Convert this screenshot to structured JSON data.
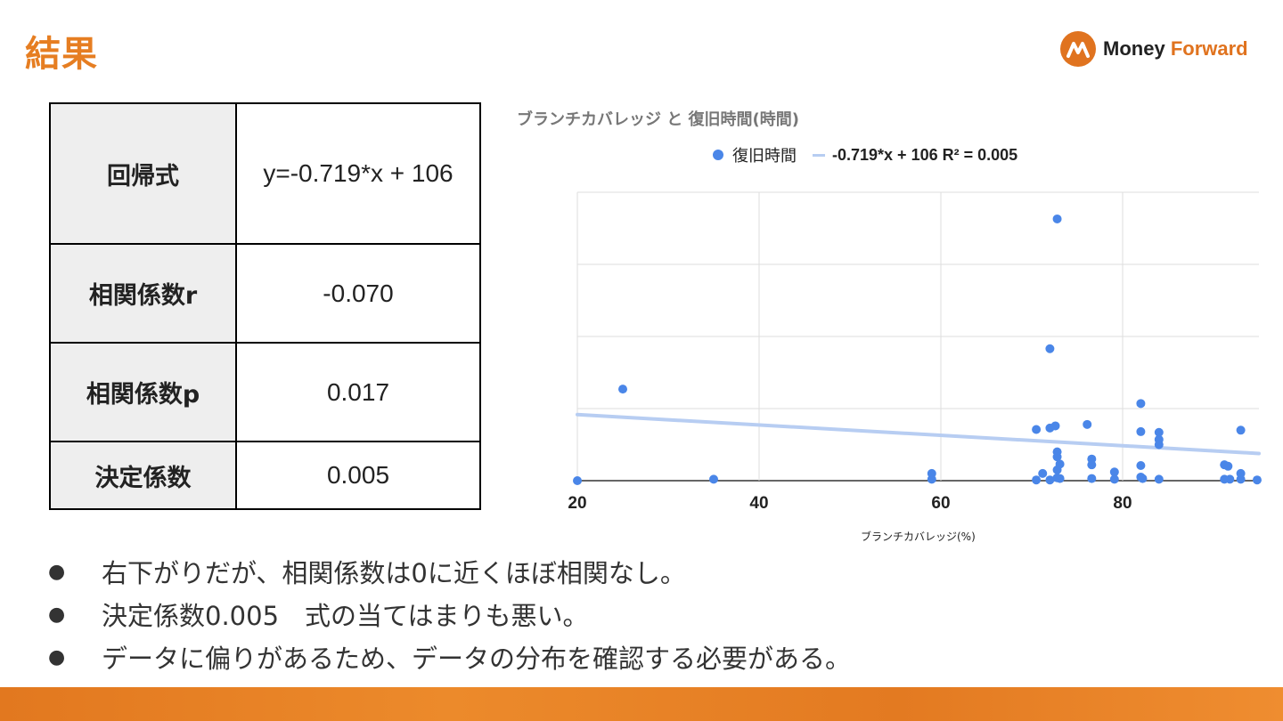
{
  "page": {
    "title": "結果"
  },
  "logo": {
    "word1": "Money",
    "word2": "Forward",
    "color": "#e0731f"
  },
  "table": {
    "rows": [
      {
        "key": "回帰式",
        "value": "y=-0.719*x + 106"
      },
      {
        "key": "相関係数r",
        "value": "-0.070"
      },
      {
        "key": "相関係数p",
        "value": "0.017"
      },
      {
        "key": "決定係数",
        "value": "0.005"
      }
    ]
  },
  "chart_data": {
    "type": "scatter",
    "title": "ブランチカバレッジ と 復旧時間(時間)",
    "xlabel": "ブランチカバレッジ(%)",
    "ylabel": "",
    "xlim": [
      20,
      95
    ],
    "ylim": [
      0,
      400
    ],
    "x_ticks": [
      "20",
      "40",
      "60",
      "80"
    ],
    "grid": true,
    "legend": "top",
    "series": [
      {
        "name": "復旧時間",
        "color": "#4a86e8",
        "points": [
          [
            20,
            0
          ],
          [
            25,
            127
          ],
          [
            35,
            2
          ],
          [
            59,
            10
          ],
          [
            59,
            2
          ],
          [
            70.5,
            71
          ],
          [
            70.5,
            1
          ],
          [
            71.2,
            10
          ],
          [
            72,
            73
          ],
          [
            72,
            183
          ],
          [
            72,
            1
          ],
          [
            72.6,
            76
          ],
          [
            72.8,
            363
          ],
          [
            72.8,
            40
          ],
          [
            72.8,
            33
          ],
          [
            72.8,
            15
          ],
          [
            72.8,
            4
          ],
          [
            73.1,
            23
          ],
          [
            73.1,
            3
          ],
          [
            76.1,
            78
          ],
          [
            76.6,
            30
          ],
          [
            76.6,
            22
          ],
          [
            76.6,
            3
          ],
          [
            79.1,
            12
          ],
          [
            79.1,
            2
          ],
          [
            82,
            107
          ],
          [
            82,
            68
          ],
          [
            82,
            21
          ],
          [
            82,
            5
          ],
          [
            82.2,
            3
          ],
          [
            84,
            67
          ],
          [
            84,
            57
          ],
          [
            84,
            50
          ],
          [
            84,
            2
          ],
          [
            91.2,
            22
          ],
          [
            91.2,
            2
          ],
          [
            91.6,
            20
          ],
          [
            91.8,
            2
          ],
          [
            93,
            70
          ],
          [
            93,
            10
          ],
          [
            93,
            2
          ],
          [
            94.8,
            1
          ]
        ]
      },
      {
        "name": "-0.719*x + 106 R² = 0.005",
        "color": "#b7cdf2",
        "type": "trendline",
        "slope": -0.719,
        "intercept": 106
      }
    ]
  },
  "bullets": [
    "右下がりだが、相関係数は0に近くほぼ相関なし。",
    "決定係数0.005　式の当てはまりも悪い。",
    "データに偏りがあるため、データの分布を確認する必要がある。"
  ],
  "bullet_glyph": "●",
  "colors": {
    "accent": "#e67e22",
    "point": "#4a86e8",
    "trend": "#b7cdf2"
  }
}
